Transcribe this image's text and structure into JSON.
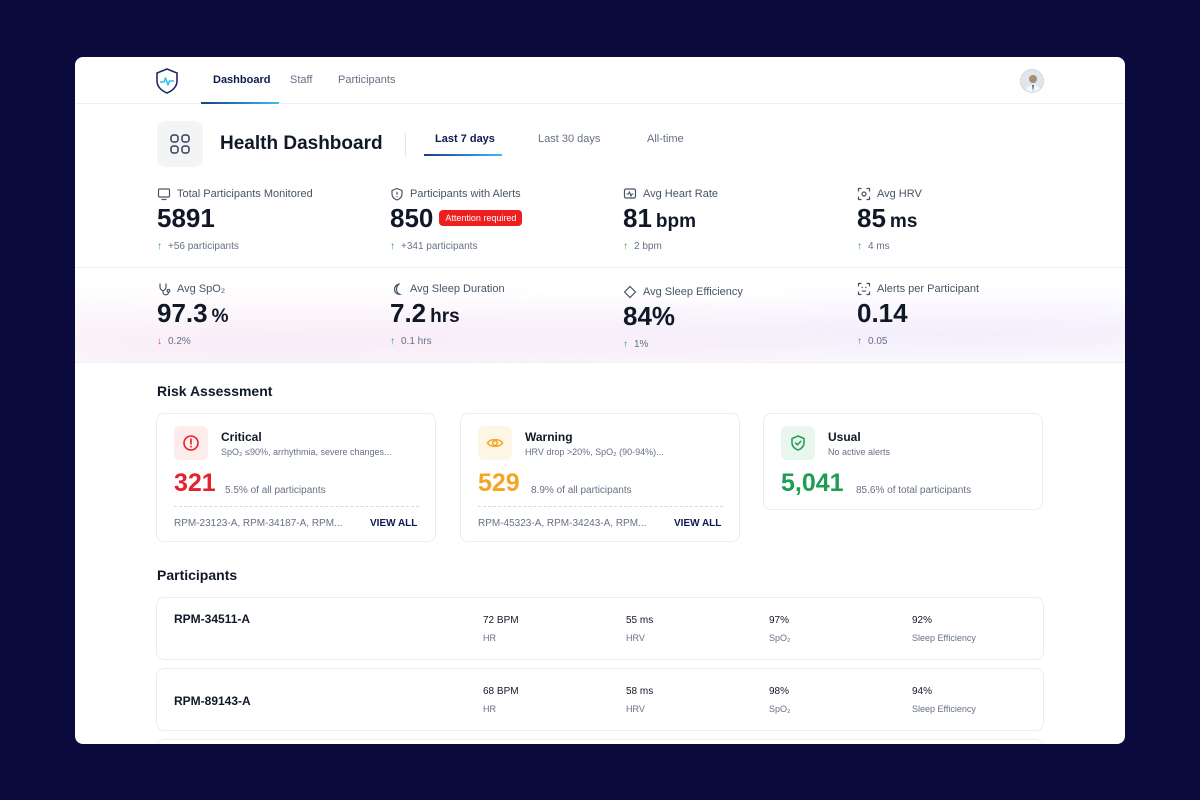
{
  "nav": {
    "links": [
      "Dashboard",
      "Staff",
      "Participants"
    ]
  },
  "header": {
    "title": "Health Dashboard",
    "ranges": [
      "Last 7 days",
      "Last 30 days",
      "All-time"
    ],
    "active_range": "Last 7 days"
  },
  "stats": [
    {
      "label": "Total Participants Monitored",
      "value": "5891",
      "unit": "",
      "delta": "+56 participants",
      "dir": "up",
      "icon": "monitor-icon"
    },
    {
      "label": "Participants with Alerts",
      "value": "850",
      "unit": "",
      "badge": "Attention required",
      "delta": "+341 participants",
      "dir": "up",
      "icon": "shield-alert-icon"
    },
    {
      "label": "Avg Heart Rate",
      "value": "81",
      "unit": "bpm",
      "delta": "2 bpm",
      "dir": "up",
      "icon": "heart-monitor-icon"
    },
    {
      "label": "Avg HRV",
      "value": "85",
      "unit": "ms",
      "delta": "4 ms",
      "dir": "up",
      "icon": "scan-icon"
    },
    {
      "label": "Avg SpO₂",
      "value": "97.3",
      "unit": "%",
      "delta": "0.2%",
      "dir": "down",
      "icon": "stethoscope-icon"
    },
    {
      "label": "Avg Sleep Duration",
      "value": "7.2",
      "unit": "hrs",
      "delta": "0.1 hrs",
      "dir": "up",
      "icon": "moon-icon"
    },
    {
      "label": "Avg Sleep Efficiency",
      "value": "84%",
      "unit": "",
      "delta": "1%",
      "dir": "up",
      "icon": "diamond-icon"
    },
    {
      "label": "Alerts per Participant",
      "value": "0.14",
      "unit": "",
      "delta": "0.05",
      "dir": "up",
      "icon": "scan-face-icon"
    }
  ],
  "arrows": {
    "up": "↑",
    "down": "↓"
  },
  "risk": {
    "title": "Risk Assessment",
    "cards": [
      {
        "name": "Critical",
        "desc": "SpO₂ ≤90%, arrhythmia, severe changes...",
        "count": "321",
        "sub": "5.5% of all participants",
        "ids": "RPM-23123-A, RPM-34187-A, RPM...",
        "action": "VIEW ALL",
        "color": "#e5222a",
        "icon": "alert-circle-icon"
      },
      {
        "name": "Warning",
        "desc": "HRV drop >20%, SpO₂ (90-94%)...",
        "count": "529",
        "sub": "8.9% of all participants",
        "ids": "RPM-45323-A, RPM-34243-A, RPM...",
        "action": "VIEW ALL",
        "color": "#f5a524",
        "icon": "eye-icon"
      },
      {
        "name": "Usual",
        "desc": "No active alerts",
        "count": "5,041",
        "sub": "85.6% of total participants",
        "color": "#1f9d55",
        "icon": "shield-check-icon"
      }
    ]
  },
  "participants": {
    "title": "Participants",
    "rows": [
      {
        "id": "RPM-34511-A",
        "metrics": [
          {
            "value": "72 BPM",
            "label": "HR"
          },
          {
            "value": "55 ms",
            "label": "HRV"
          },
          {
            "value": "97%",
            "label": "SpO₂"
          },
          {
            "value": "92%",
            "label": "Sleep Efficiency"
          }
        ]
      },
      {
        "id": "RPM-89143-A",
        "metrics": [
          {
            "value": "68 BPM",
            "label": "HR"
          },
          {
            "value": "58 ms",
            "label": "HRV"
          },
          {
            "value": "98%",
            "label": "SpO₂"
          },
          {
            "value": "94%",
            "label": "Sleep Efficiency"
          }
        ]
      }
    ]
  }
}
